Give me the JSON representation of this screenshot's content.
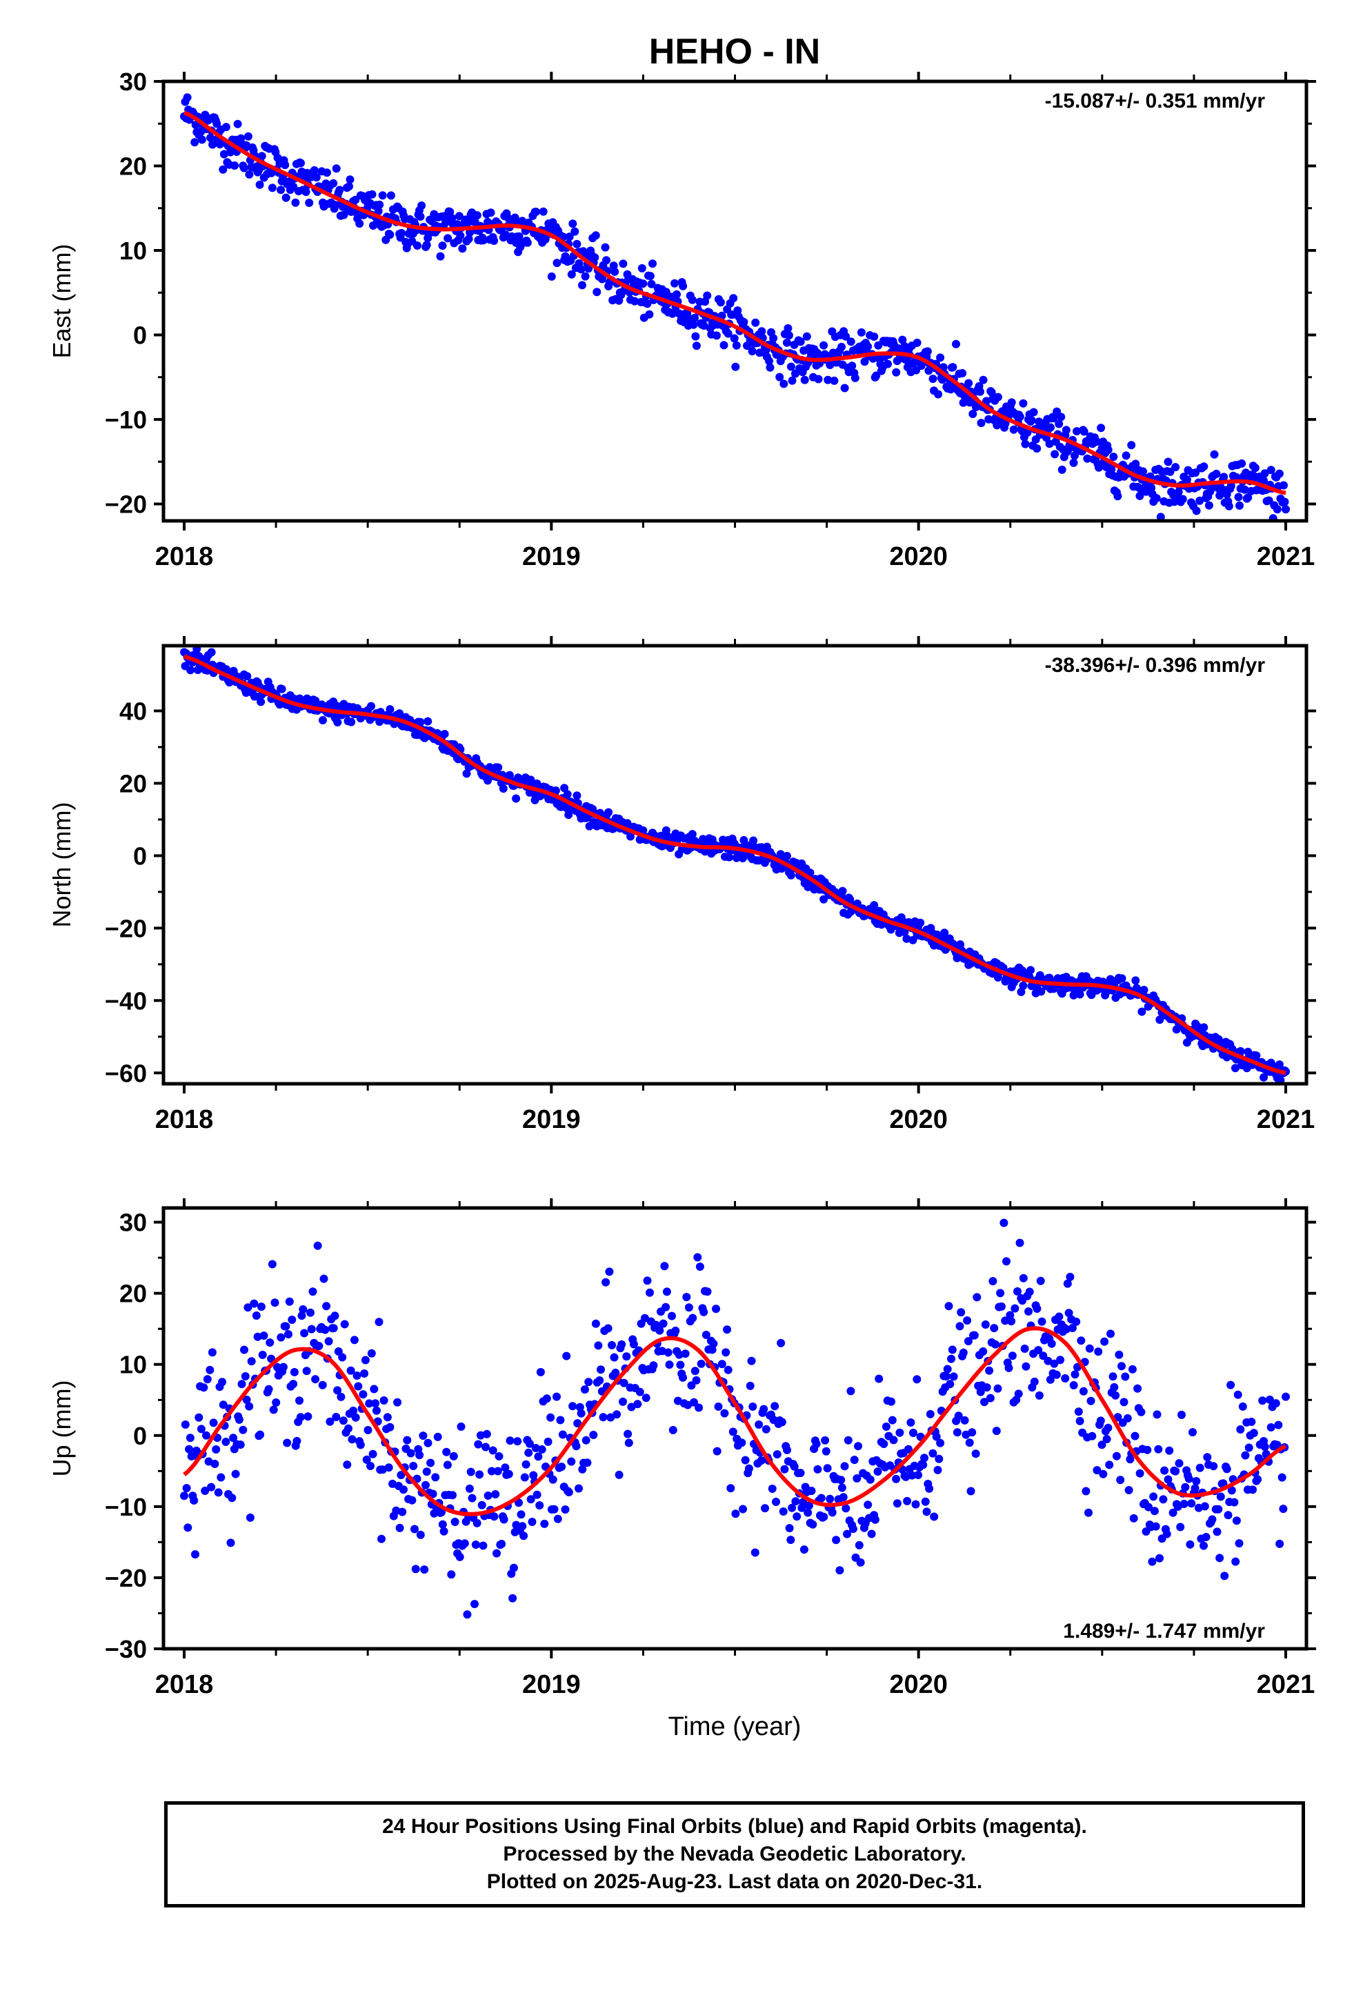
{
  "title": "HEHO - IN",
  "xlabel": "Time (year)",
  "colors": {
    "points": "#0000ff",
    "fit": "#ff0000",
    "axes": "#000000"
  },
  "footer": {
    "lines": [
      "24 Hour Positions Using Final Orbits (blue) and Rapid Orbits (magenta).",
      "Processed by the Nevada Geodetic Laboratory.",
      "Plotted on 2025-Aug-23. Last data on 2020-Dec-31."
    ]
  },
  "chart_data": [
    {
      "type": "scatter",
      "component": "east",
      "ylabel": "East (mm)",
      "rate_label": "-15.087+/- 0.351 mm/yr",
      "rate_position": "top-right",
      "xlim": [
        2018.0,
        2021.0
      ],
      "ylim": [
        -22,
        30
      ],
      "xticks": [
        2018,
        2019,
        2020,
        2021
      ],
      "yticks": [
        -20,
        -10,
        0,
        10,
        20,
        30
      ],
      "fit_x": [
        2018.0,
        2018.1,
        2018.2,
        2018.3,
        2018.4,
        2018.5,
        2018.6,
        2018.7,
        2018.8,
        2018.9,
        2019.0,
        2019.1,
        2019.2,
        2019.3,
        2019.4,
        2019.5,
        2019.6,
        2019.7,
        2019.8,
        2019.9,
        2020.0,
        2020.1,
        2020.2,
        2020.3,
        2020.4,
        2020.5,
        2020.6,
        2020.7,
        2020.8,
        2020.9,
        2021.0
      ],
      "fit_y": [
        26.3,
        23.4,
        20.7,
        18.6,
        16.5,
        14.5,
        13.0,
        12.5,
        12.7,
        12.9,
        11.8,
        8.6,
        5.8,
        4.2,
        2.7,
        1.0,
        -1.5,
        -2.9,
        -2.7,
        -2.2,
        -2.7,
        -5.6,
        -9.0,
        -11.0,
        -12.4,
        -14.5,
        -16.8,
        -17.8,
        -17.5,
        -17.4,
        -18.7
      ],
      "points_spread": 1.4
    },
    {
      "type": "scatter",
      "component": "north",
      "ylabel": "North (mm)",
      "rate_label": "-38.396+/- 0.396 mm/yr",
      "rate_position": "top-right",
      "xlim": [
        2018.0,
        2021.0
      ],
      "ylim": [
        -63,
        58
      ],
      "xticks": [
        2018,
        2019,
        2020,
        2021
      ],
      "yticks": [
        -60,
        -40,
        -20,
        0,
        20,
        40
      ],
      "fit_x": [
        2018.0,
        2018.1,
        2018.2,
        2018.3,
        2018.4,
        2018.5,
        2018.6,
        2018.7,
        2018.8,
        2018.9,
        2019.0,
        2019.1,
        2019.2,
        2019.3,
        2019.4,
        2019.5,
        2019.6,
        2019.7,
        2019.8,
        2019.9,
        2020.0,
        2020.1,
        2020.2,
        2020.3,
        2020.4,
        2020.5,
        2020.6,
        2020.7,
        2020.8,
        2020.9,
        2021.0
      ],
      "fit_y": [
        55.0,
        50.5,
        46.0,
        42.0,
        40.0,
        39.0,
        37.0,
        32.0,
        24.5,
        20.0,
        17.0,
        12.0,
        7.5,
        4.0,
        2.5,
        2.0,
        -0.5,
        -6.0,
        -13.0,
        -17.5,
        -21.0,
        -26.0,
        -31.0,
        -34.5,
        -35.5,
        -36.0,
        -38.5,
        -45.0,
        -52.0,
        -56.5,
        -60.0
      ],
      "points_spread": 1.4
    },
    {
      "type": "scatter",
      "component": "up",
      "ylabel": "Up (mm)",
      "rate_label": "1.489+/- 1.747 mm/yr",
      "rate_position": "bottom-right",
      "xlim": [
        2018.0,
        2021.0
      ],
      "ylim": [
        -30,
        32
      ],
      "xticks": [
        2018,
        2019,
        2020,
        2021
      ],
      "yticks": [
        -30,
        -20,
        -10,
        0,
        10,
        20,
        30
      ],
      "fit_x": [
        2018.0,
        2018.1,
        2018.2,
        2018.3,
        2018.4,
        2018.5,
        2018.6,
        2018.7,
        2018.8,
        2018.9,
        2019.0,
        2019.1,
        2019.2,
        2019.3,
        2019.4,
        2019.5,
        2019.6,
        2019.7,
        2019.8,
        2019.9,
        2020.0,
        2020.1,
        2020.2,
        2020.3,
        2020.4,
        2020.5,
        2020.6,
        2020.7,
        2020.8,
        2020.9,
        2021.0
      ],
      "fit_y": [
        -5.5,
        1.5,
        8.0,
        12.0,
        10.5,
        3.0,
        -5.0,
        -10.0,
        -11.0,
        -9.0,
        -4.5,
        2.5,
        9.0,
        13.5,
        12.0,
        4.5,
        -4.0,
        -9.0,
        -9.5,
        -6.5,
        -1.5,
        5.0,
        11.0,
        15.0,
        13.0,
        5.0,
        -3.5,
        -8.0,
        -8.0,
        -5.5,
        -1.5
      ],
      "points_spread": 5.5
    }
  ]
}
